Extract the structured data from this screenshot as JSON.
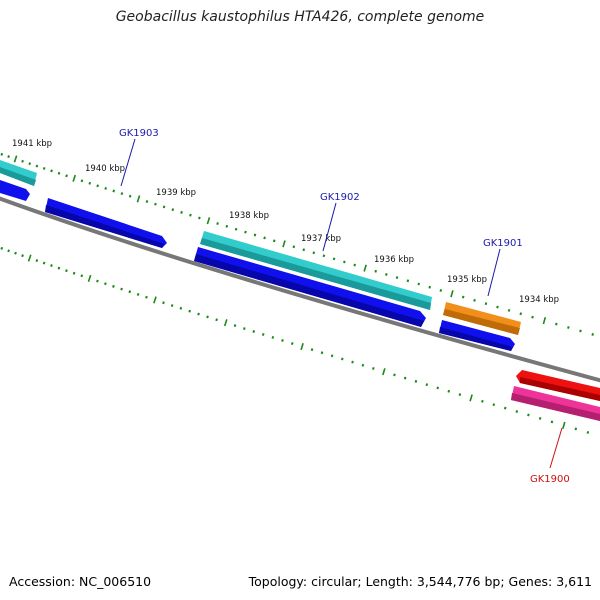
{
  "title": "Geobacillus kaustophilus HTA426, complete genome",
  "footer": {
    "accession": "Accession: NC_006510",
    "stats": "Topology: circular; Length: 3,544,776 bp; Genes: 3,611"
  },
  "colors": {
    "backbone": "#888888",
    "ticks": "#1a8a1a",
    "forward_gene_label": "#1a1aaa",
    "reverse_gene_label": "#cc1111",
    "cds_forward": "#1010ee",
    "rna_cyan": "#33cccc",
    "orange": "#f0901a",
    "cds_reverse": "#ee1111",
    "pink": "#ee3399"
  },
  "scale_labels": [
    "1941 kbp",
    "1940 kbp",
    "1939 kbp",
    "1938 kbp",
    "1937 kbp",
    "1936 kbp",
    "1935 kbp",
    "1934 kbp"
  ],
  "gene_labels": [
    {
      "name": "GK1903",
      "strand": "forward"
    },
    {
      "name": "GK1902",
      "strand": "forward"
    },
    {
      "name": "GK1901",
      "strand": "forward"
    },
    {
      "name": "GK1900",
      "strand": "reverse"
    }
  ]
}
